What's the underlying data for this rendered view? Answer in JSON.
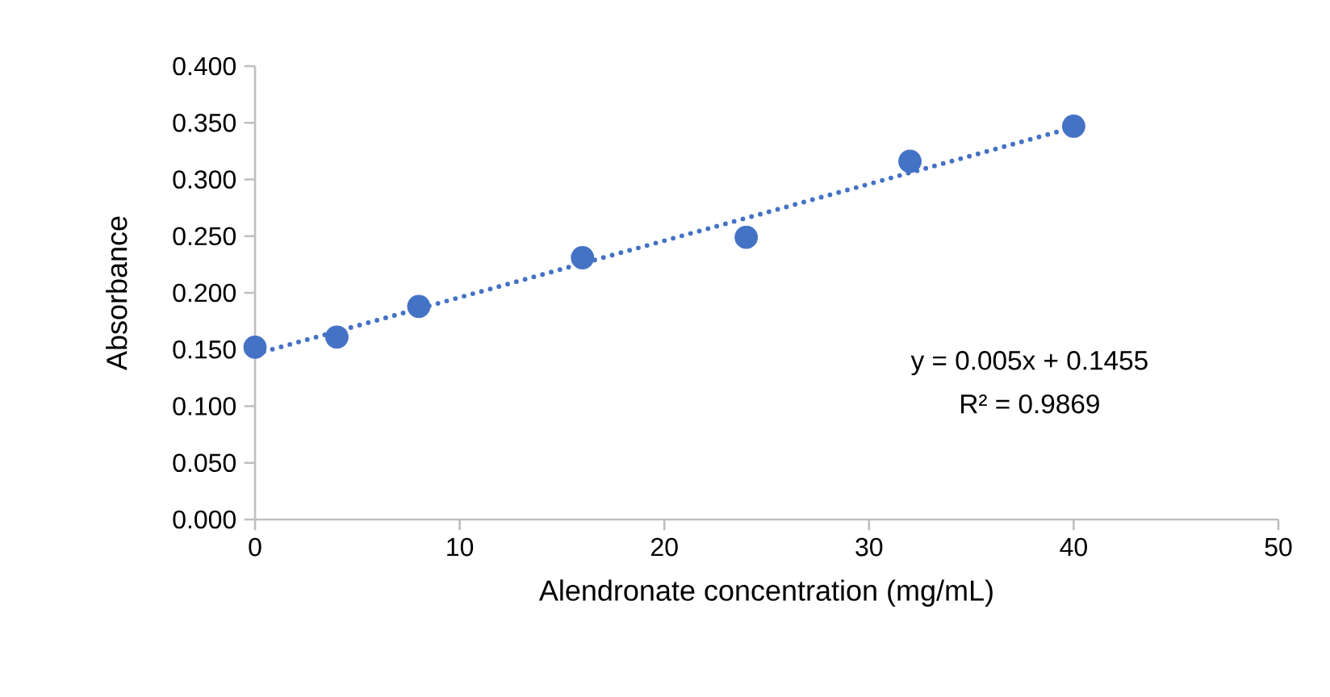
{
  "chart_data": {
    "type": "scatter",
    "xlabel": "Alendronate concentration (mg/mL)",
    "ylabel": "Absorbance",
    "x": [
      0,
      4,
      8,
      16,
      24,
      32,
      40
    ],
    "series": [
      {
        "color": "#4472c4",
        "marker": "circle",
        "values": [
          0.152,
          0.161,
          0.188,
          0.231,
          0.249,
          0.316,
          0.347
        ]
      },
      {
        "type": "line",
        "color": "#4472c4",
        "line_style": "dotted",
        "marker": "none",
        "x": [
          0,
          40
        ],
        "values": [
          0.146,
          0.346
        ]
      }
    ],
    "annotations": [
      "y = 0.005x + 0.1455",
      "R² = 0.9869"
    ],
    "xlim": [
      0,
      50
    ],
    "xticks": [
      0,
      10,
      20,
      30,
      40,
      50
    ],
    "ylim": [
      0,
      0.4
    ],
    "yticks": [
      {
        "value": 0,
        "label": "0.000"
      },
      {
        "value": 0.05,
        "label": "0.050"
      },
      {
        "value": 0.1,
        "label": "0.100"
      },
      {
        "value": 0.15,
        "label": "0.150"
      },
      {
        "value": 0.2,
        "label": "0.200"
      },
      {
        "value": 0.25,
        "label": "0.250"
      },
      {
        "value": 0.3,
        "label": "0.300"
      },
      {
        "value": 0.35,
        "label": "0.350"
      },
      {
        "value": 0.4,
        "label": "0.400"
      }
    ],
    "grid": false
  }
}
